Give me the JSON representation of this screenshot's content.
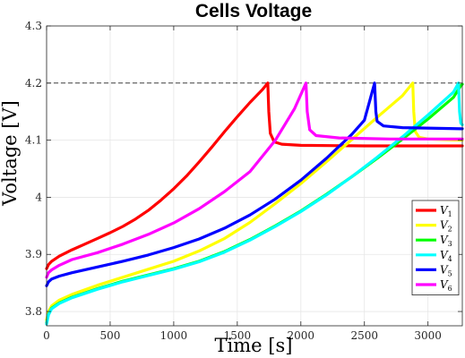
{
  "chart_data": {
    "type": "line",
    "title": "Cells Voltage",
    "xlabel": "Time [s]",
    "ylabel": "Voltage [V]",
    "xlim": [
      0,
      3270
    ],
    "ylim": [
      3.775,
      4.3
    ],
    "x_ticks": [
      0,
      500,
      1000,
      1500,
      2000,
      2500,
      3000
    ],
    "x_tick_labels": [
      "0",
      "500",
      "1000",
      "1500",
      "2000",
      "2500",
      "3000"
    ],
    "y_ticks": [
      3.8,
      3.9,
      4.0,
      4.1,
      4.2,
      4.3
    ],
    "y_tick_labels": [
      "3.8",
      "3.9",
      "4",
      "4.1",
      "4.2",
      "4.3"
    ],
    "grid": true,
    "reference_line": {
      "y": 4.2,
      "style": "dashed"
    },
    "legend": {
      "position": "bottom-right"
    },
    "series": [
      {
        "name": "V1",
        "legend_main": "V",
        "legend_sub": "1",
        "color": "#ff0000",
        "points": [
          [
            0,
            3.875
          ],
          [
            15,
            3.882
          ],
          [
            40,
            3.888
          ],
          [
            100,
            3.897
          ],
          [
            200,
            3.908
          ],
          [
            300,
            3.918
          ],
          [
            400,
            3.928
          ],
          [
            500,
            3.938
          ],
          [
            600,
            3.949
          ],
          [
            700,
            3.962
          ],
          [
            800,
            3.977
          ],
          [
            900,
            3.995
          ],
          [
            1000,
            4.015
          ],
          [
            1100,
            4.037
          ],
          [
            1200,
            4.062
          ],
          [
            1300,
            4.088
          ],
          [
            1400,
            4.115
          ],
          [
            1500,
            4.141
          ],
          [
            1600,
            4.166
          ],
          [
            1700,
            4.189
          ],
          [
            1740,
            4.2
          ],
          [
            1748,
            4.15
          ],
          [
            1760,
            4.112
          ],
          [
            1790,
            4.097
          ],
          [
            1850,
            4.093
          ],
          [
            2000,
            4.091
          ],
          [
            2500,
            4.09
          ],
          [
            3000,
            4.09
          ],
          [
            3270,
            4.09
          ]
        ]
      },
      {
        "name": "V2",
        "legend_main": "V",
        "legend_sub": "2",
        "color": "#ffff00",
        "points": [
          [
            0,
            3.785
          ],
          [
            15,
            3.8
          ],
          [
            40,
            3.81
          ],
          [
            100,
            3.82
          ],
          [
            200,
            3.83
          ],
          [
            400,
            3.846
          ],
          [
            600,
            3.86
          ],
          [
            800,
            3.874
          ],
          [
            1000,
            3.888
          ],
          [
            1200,
            3.906
          ],
          [
            1400,
            3.928
          ],
          [
            1600,
            3.956
          ],
          [
            1800,
            3.989
          ],
          [
            2000,
            4.024
          ],
          [
            2200,
            4.062
          ],
          [
            2400,
            4.101
          ],
          [
            2600,
            4.14
          ],
          [
            2800,
            4.178
          ],
          [
            2880,
            4.2
          ],
          [
            2888,
            4.15
          ],
          [
            2900,
            4.115
          ],
          [
            2930,
            4.105
          ],
          [
            3000,
            4.102
          ],
          [
            3270,
            4.1
          ]
        ]
      },
      {
        "name": "V3",
        "legend_main": "V",
        "legend_sub": "3",
        "color": "#00ff00",
        "points": [
          [
            0,
            3.78
          ],
          [
            15,
            3.795
          ],
          [
            40,
            3.806
          ],
          [
            100,
            3.815
          ],
          [
            200,
            3.825
          ],
          [
            400,
            3.84
          ],
          [
            600,
            3.853
          ],
          [
            800,
            3.864
          ],
          [
            1000,
            3.875
          ],
          [
            1200,
            3.888
          ],
          [
            1400,
            3.905
          ],
          [
            1600,
            3.926
          ],
          [
            1800,
            3.95
          ],
          [
            2000,
            3.976
          ],
          [
            2200,
            4.005
          ],
          [
            2400,
            4.036
          ],
          [
            2600,
            4.068
          ],
          [
            2800,
            4.102
          ],
          [
            3000,
            4.137
          ],
          [
            3200,
            4.175
          ],
          [
            3260,
            4.196
          ],
          [
            3270,
            4.198
          ]
        ]
      },
      {
        "name": "V4",
        "legend_main": "V",
        "legend_sub": "4",
        "color": "#00ffff",
        "points": [
          [
            0,
            3.778
          ],
          [
            15,
            3.794
          ],
          [
            40,
            3.805
          ],
          [
            100,
            3.814
          ],
          [
            200,
            3.824
          ],
          [
            400,
            3.839
          ],
          [
            600,
            3.852
          ],
          [
            800,
            3.863
          ],
          [
            1000,
            3.874
          ],
          [
            1200,
            3.887
          ],
          [
            1400,
            3.904
          ],
          [
            1600,
            3.925
          ],
          [
            1800,
            3.949
          ],
          [
            2000,
            3.975
          ],
          [
            2200,
            4.004
          ],
          [
            2400,
            4.036
          ],
          [
            2600,
            4.07
          ],
          [
            2800,
            4.106
          ],
          [
            3000,
            4.144
          ],
          [
            3200,
            4.184
          ],
          [
            3240,
            4.2
          ],
          [
            3248,
            4.15
          ],
          [
            3258,
            4.13
          ],
          [
            3270,
            4.127
          ]
        ]
      },
      {
        "name": "V5",
        "legend_main": "V",
        "legend_sub": "5",
        "color": "#0000ff",
        "points": [
          [
            0,
            3.845
          ],
          [
            15,
            3.852
          ],
          [
            40,
            3.857
          ],
          [
            100,
            3.862
          ],
          [
            200,
            3.868
          ],
          [
            400,
            3.878
          ],
          [
            600,
            3.888
          ],
          [
            800,
            3.899
          ],
          [
            1000,
            3.912
          ],
          [
            1200,
            3.927
          ],
          [
            1400,
            3.946
          ],
          [
            1600,
            3.969
          ],
          [
            1800,
            3.997
          ],
          [
            2000,
            4.03
          ],
          [
            2200,
            4.068
          ],
          [
            2400,
            4.11
          ],
          [
            2500,
            4.135
          ],
          [
            2580,
            4.2
          ],
          [
            2590,
            4.15
          ],
          [
            2600,
            4.133
          ],
          [
            2650,
            4.125
          ],
          [
            2800,
            4.122
          ],
          [
            3270,
            4.12
          ]
        ]
      },
      {
        "name": "V6",
        "legend_main": "V",
        "legend_sub": "6",
        "color": "#ff00ff",
        "points": [
          [
            0,
            3.86
          ],
          [
            15,
            3.868
          ],
          [
            40,
            3.873
          ],
          [
            100,
            3.881
          ],
          [
            200,
            3.891
          ],
          [
            400,
            3.903
          ],
          [
            600,
            3.918
          ],
          [
            800,
            3.935
          ],
          [
            1000,
            3.955
          ],
          [
            1200,
            3.98
          ],
          [
            1400,
            4.01
          ],
          [
            1600,
            4.045
          ],
          [
            1800,
            4.1
          ],
          [
            1950,
            4.155
          ],
          [
            2040,
            4.2
          ],
          [
            2050,
            4.15
          ],
          [
            2070,
            4.118
          ],
          [
            2120,
            4.108
          ],
          [
            2300,
            4.104
          ],
          [
            2700,
            4.102
          ],
          [
            3270,
            4.102
          ]
        ]
      }
    ]
  }
}
